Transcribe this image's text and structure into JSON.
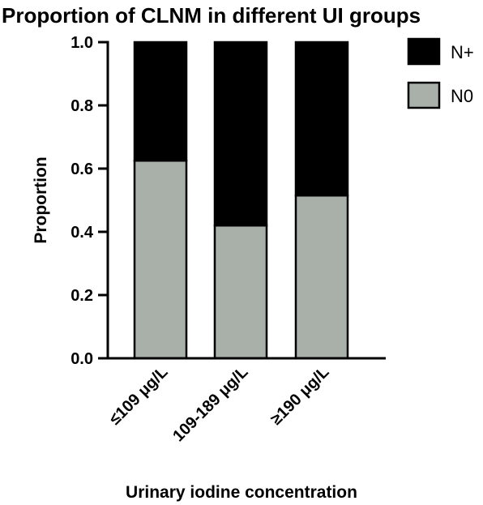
{
  "chart_data": {
    "type": "bar",
    "stacked": true,
    "title": "Proportion of CLNM in different UI groups",
    "xlabel": "Urinary iodine concentration",
    "ylabel": "Proportion",
    "ylim": [
      0,
      1.0
    ],
    "yticks": [
      "0.0",
      "0.2",
      "0.4",
      "0.6",
      "0.8",
      "1.0"
    ],
    "categories": [
      "≤109 μg/L",
      "109-189 μg/L",
      "≥190 μg/L"
    ],
    "series": [
      {
        "name": "N0",
        "values": [
          0.625,
          0.42,
          0.515
        ],
        "color": "#a9b0aa"
      },
      {
        "name": "N+",
        "values": [
          0.375,
          0.58,
          0.485
        ],
        "color": "#000000"
      }
    ],
    "legend": {
      "position": "top-right",
      "entries": [
        "N+",
        "N0"
      ]
    },
    "grid": false
  }
}
